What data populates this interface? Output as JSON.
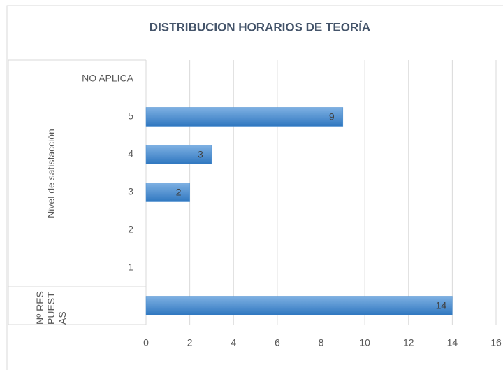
{
  "chart_data": {
    "type": "bar",
    "orientation": "horizontal",
    "title": "DISTRIBUCION HORARIOS DE TEORÍA",
    "category_groups": [
      {
        "name": "Nivel de satisfacción",
        "categories": [
          "NO APLICA",
          "5",
          "4",
          "3",
          "2",
          "1"
        ],
        "values": [
          null,
          9,
          3,
          2,
          null,
          null
        ]
      },
      {
        "name": "Nº RESPUESTAS",
        "categories": [
          null
        ],
        "values": [
          14
        ]
      }
    ],
    "color": "#4a8ed0",
    "xlim": [
      0,
      16
    ],
    "xticks": [
      0,
      2,
      4,
      6,
      8,
      10,
      12,
      14,
      16
    ],
    "grid": true
  }
}
